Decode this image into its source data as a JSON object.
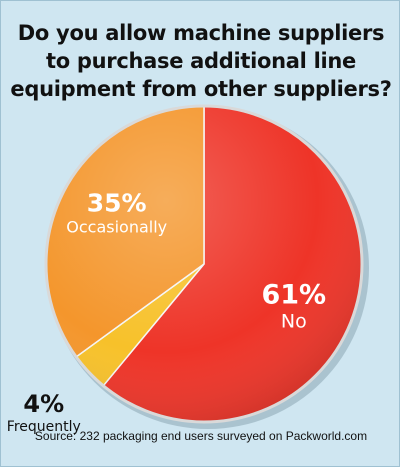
{
  "chart_data": {
    "type": "pie",
    "title": "Do you allow machine suppliers to purchase additional line equipment from other suppliers?",
    "slices": [
      {
        "label": "No",
        "value": 61,
        "percent_label": "61%",
        "color": "#ee3428"
      },
      {
        "label": "Frequently",
        "value": 4,
        "percent_label": "4%",
        "color": "#f7c12a"
      },
      {
        "label": "Occasionally",
        "value": 35,
        "percent_label": "35%",
        "color": "#f4962c"
      }
    ],
    "source": "Source: 232 packaging end users surveyed on Packworld.com"
  }
}
